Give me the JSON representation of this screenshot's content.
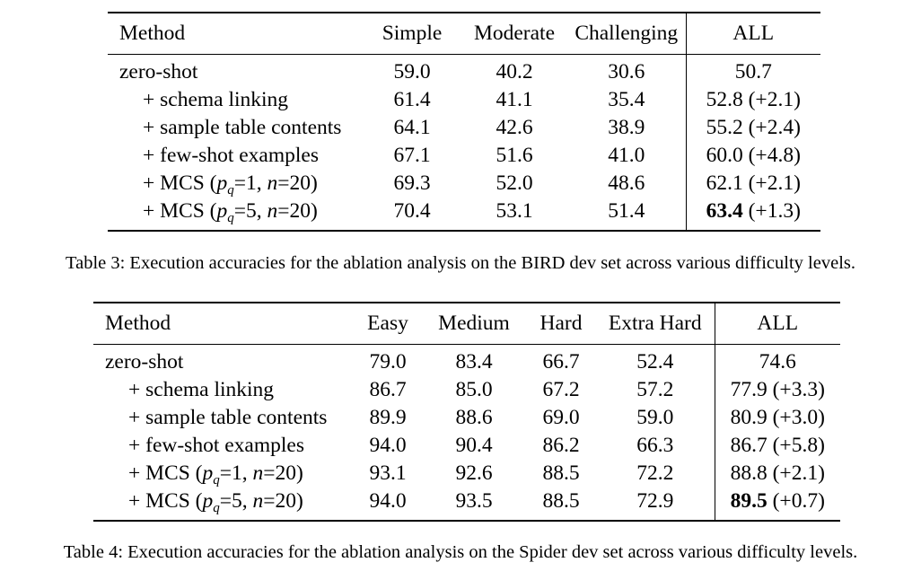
{
  "table3": {
    "headers": [
      "Method",
      "Simple",
      "Moderate",
      "Challenging",
      "ALL"
    ],
    "rows": [
      {
        "method": "zero-shot",
        "v1": "59.0",
        "v2": "40.2",
        "v3": "30.6",
        "all": "50.7",
        "delta": ""
      },
      {
        "method": "+ schema linking",
        "v1": "61.4",
        "v2": "41.1",
        "v3": "35.4",
        "all": "52.8",
        "delta": "(+2.1)"
      },
      {
        "method": "+ sample table contents",
        "v1": "64.1",
        "v2": "42.6",
        "v3": "38.9",
        "all": "55.2",
        "delta": "(+2.4)"
      },
      {
        "method": "+ few-shot examples",
        "v1": "67.1",
        "v2": "51.6",
        "v3": "41.0",
        "all": "60.0",
        "delta": "(+4.8)"
      },
      {
        "method_prefix": "+ MCS (",
        "p_sym": "p",
        "p_sub": "q",
        "p_val": "=1, ",
        "n_sym": "n",
        "n_val": "=20)",
        "v1": "69.3",
        "v2": "52.0",
        "v3": "48.6",
        "all": "62.1",
        "delta": "(+2.1)"
      },
      {
        "method_prefix": "+ MCS (",
        "p_sym": "p",
        "p_sub": "q",
        "p_val": "=5, ",
        "n_sym": "n",
        "n_val": "=20)",
        "v1": "70.4",
        "v2": "53.1",
        "v3": "51.4",
        "all": "63.4",
        "delta": "(+1.3)"
      }
    ],
    "caption": "Table 3: Execution accuracies for the ablation analysis on the BIRD dev set across various difficulty levels."
  },
  "table4": {
    "headers": [
      "Method",
      "Easy",
      "Medium",
      "Hard",
      "Extra Hard",
      "ALL"
    ],
    "rows": [
      {
        "method": "zero-shot",
        "v1": "79.0",
        "v2": "83.4",
        "v3": "66.7",
        "v4": "52.4",
        "all": "74.6",
        "delta": ""
      },
      {
        "method": "+ schema linking",
        "v1": "86.7",
        "v2": "85.0",
        "v3": "67.2",
        "v4": "57.2",
        "all": "77.9",
        "delta": "(+3.3)"
      },
      {
        "method": "+ sample table contents",
        "v1": "89.9",
        "v2": "88.6",
        "v3": "69.0",
        "v4": "59.0",
        "all": "80.9",
        "delta": "(+3.0)"
      },
      {
        "method": "+ few-shot examples",
        "v1": "94.0",
        "v2": "90.4",
        "v3": "86.2",
        "v4": "66.3",
        "all": "86.7",
        "delta": "(+5.8)"
      },
      {
        "method_prefix": "+ MCS (",
        "p_sym": "p",
        "p_sub": "q",
        "p_val": "=1, ",
        "n_sym": "n",
        "n_val": "=20)",
        "v1": "93.1",
        "v2": "92.6",
        "v3": "88.5",
        "v4": "72.2",
        "all": "88.8",
        "delta": "(+2.1)"
      },
      {
        "method_prefix": "+ MCS (",
        "p_sym": "p",
        "p_sub": "q",
        "p_val": "=5, ",
        "n_sym": "n",
        "n_val": "=20)",
        "v1": "94.0",
        "v2": "93.5",
        "v3": "88.5",
        "v4": "72.9",
        "all": "89.5",
        "delta": "(+0.7)"
      }
    ],
    "caption": "Table 4: Execution accuracies for the ablation analysis on the Spider dev set across various difficulty levels."
  }
}
